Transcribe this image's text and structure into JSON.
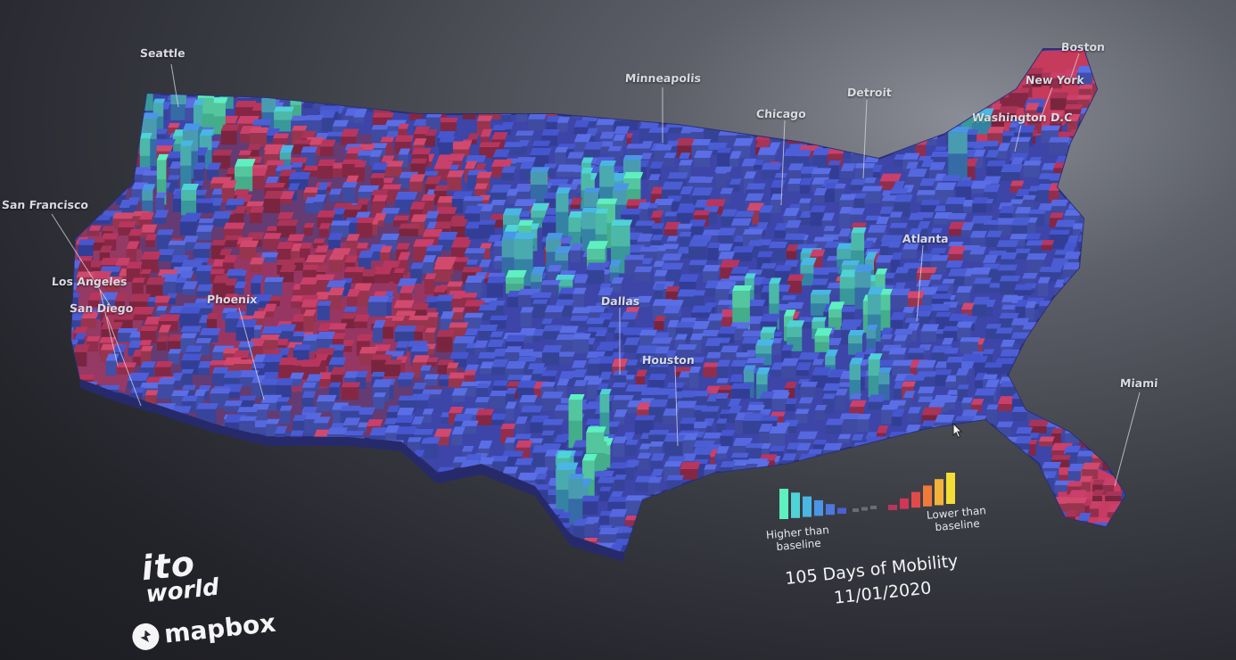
{
  "map": {
    "cities": [
      {
        "id": "seattle",
        "name": "Seattle"
      },
      {
        "id": "minneapolis",
        "name": "Minneapolis"
      },
      {
        "id": "chicago",
        "name": "Chicago"
      },
      {
        "id": "detroit",
        "name": "Detroit"
      },
      {
        "id": "boston",
        "name": "Boston"
      },
      {
        "id": "new-york",
        "name": "New York"
      },
      {
        "id": "washington-dc",
        "name": "Washington D.C"
      },
      {
        "id": "san-francisco",
        "name": "San Francisco"
      },
      {
        "id": "los-angeles",
        "name": "Los Angeles"
      },
      {
        "id": "san-diego",
        "name": "San Diego"
      },
      {
        "id": "phoenix",
        "name": "Phoenix"
      },
      {
        "id": "dallas",
        "name": "Dallas"
      },
      {
        "id": "houston",
        "name": "Houston"
      },
      {
        "id": "atlanta",
        "name": "Atlanta"
      },
      {
        "id": "miami",
        "name": "Miami"
      }
    ]
  },
  "legend": {
    "higher_label": "Higher than\nbaseline",
    "lower_label": "Lower than\nbaseline",
    "higher_colors": [
      "#5ef0c0",
      "#4fd3d6",
      "#49b6e4",
      "#4a96e6",
      "#4d78e0",
      "#4d5fd4"
    ],
    "lower_colors": [
      "#b8365a",
      "#d2355a",
      "#e24a4a",
      "#ef7a3a",
      "#f4b33a",
      "#f4dd35"
    ]
  },
  "caption": {
    "title": "105 Days of Mobility",
    "date": "11/01/2020"
  },
  "branding": {
    "ito_line1": "ito",
    "ito_line2": "world",
    "mapbox": "mapbox"
  },
  "colors": {
    "higher": "#4a5fd8",
    "lower": "#c43a5e",
    "background": "#2b2c32"
  }
}
